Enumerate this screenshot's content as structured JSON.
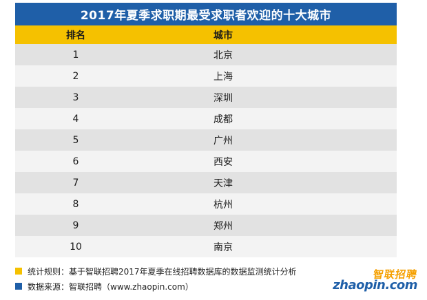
{
  "title": "2017年夏季求职期最受求职者欢迎的十大城市",
  "table": {
    "headers": {
      "rank": "排名",
      "city": "城市"
    },
    "rows": [
      {
        "rank": "1",
        "city": "北京"
      },
      {
        "rank": "2",
        "city": "上海"
      },
      {
        "rank": "3",
        "city": "深圳"
      },
      {
        "rank": "4",
        "city": "成都"
      },
      {
        "rank": "5",
        "city": "广州"
      },
      {
        "rank": "6",
        "city": "西安"
      },
      {
        "rank": "7",
        "city": "天津"
      },
      {
        "rank": "8",
        "city": "杭州"
      },
      {
        "rank": "9",
        "city": "郑州"
      },
      {
        "rank": "10",
        "city": "南京"
      }
    ]
  },
  "footer": {
    "rule": "统计规则：基于智联招聘2017年夏季在线招聘数据库的数据监测统计分析",
    "source": "数据来源：智联招聘（www.zhaopin.com）"
  },
  "logo": {
    "cn": "智联招聘",
    "en": "zhaopin.com"
  },
  "colors": {
    "title_bg": "#1f5fa8",
    "header_bg": "#f5c100",
    "row_odd": "#e2e2e2",
    "row_even": "#f3f3f3"
  }
}
